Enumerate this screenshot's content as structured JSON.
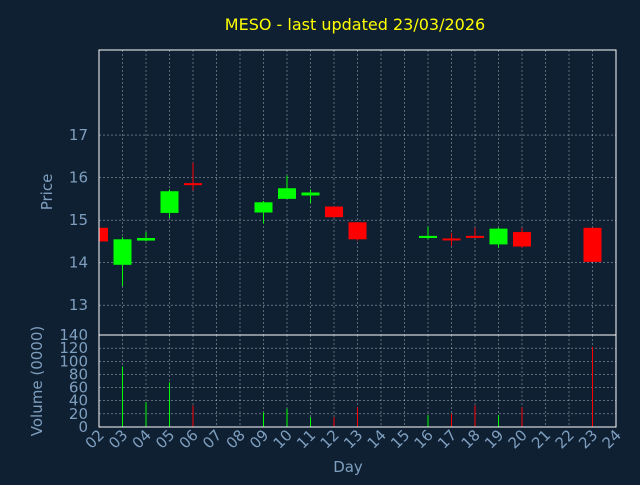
{
  "chart_data": {
    "type": "candlestick",
    "title": "MESO - last updated 23/03/2026",
    "xlabel": "Day",
    "categories": [
      "02",
      "03",
      "04",
      "05",
      "06",
      "07",
      "08",
      "09",
      "10",
      "11",
      "12",
      "13",
      "14",
      "15",
      "16",
      "17",
      "18",
      "19",
      "20",
      "21",
      "22",
      "23",
      "24"
    ],
    "price_panel": {
      "ylabel": "Price",
      "ylim": [
        12.3,
        19.0
      ],
      "yticks": [
        13,
        14,
        15,
        16,
        17
      ],
      "candles": [
        {
          "day": "02",
          "open": 14.82,
          "high": 14.82,
          "low": 14.5,
          "close": 14.5
        },
        {
          "day": "03",
          "open": 13.95,
          "high": 14.6,
          "low": 13.45,
          "close": 14.55
        },
        {
          "day": "04",
          "open": 14.52,
          "high": 14.72,
          "low": 14.5,
          "close": 14.58
        },
        {
          "day": "05",
          "open": 15.17,
          "high": 15.72,
          "low": 15.05,
          "close": 15.68
        },
        {
          "day": "06",
          "open": 15.87,
          "high": 16.35,
          "low": 15.7,
          "close": 15.85
        },
        {
          "day": "09",
          "open": 15.18,
          "high": 15.45,
          "low": 14.92,
          "close": 15.42
        },
        {
          "day": "10",
          "open": 15.5,
          "high": 16.05,
          "low": 15.5,
          "close": 15.75
        },
        {
          "day": "11",
          "open": 15.58,
          "high": 15.72,
          "low": 15.4,
          "close": 15.65
        },
        {
          "day": "12",
          "open": 15.32,
          "high": 15.32,
          "low": 15.05,
          "close": 15.07
        },
        {
          "day": "13",
          "open": 14.95,
          "high": 14.95,
          "low": 14.52,
          "close": 14.55
        },
        {
          "day": "16",
          "open": 14.58,
          "high": 14.85,
          "low": 14.55,
          "close": 14.63
        },
        {
          "day": "17",
          "open": 14.57,
          "high": 14.7,
          "low": 14.4,
          "close": 14.55
        },
        {
          "day": "18",
          "open": 14.63,
          "high": 14.82,
          "low": 14.6,
          "close": 14.62
        },
        {
          "day": "19",
          "open": 14.43,
          "high": 14.82,
          "low": 14.35,
          "close": 14.8
        },
        {
          "day": "20",
          "open": 14.72,
          "high": 14.82,
          "low": 14.35,
          "close": 14.38
        },
        {
          "day": "23",
          "open": 14.82,
          "high": 14.82,
          "low": 14.02,
          "close": 14.02
        }
      ]
    },
    "volume_panel": {
      "ylabel": "Volume (0000)",
      "ylim": [
        0,
        140
      ],
      "yticks": [
        0,
        20,
        40,
        60,
        80,
        100,
        120,
        140
      ],
      "bars": [
        {
          "day": "02",
          "value": 0,
          "direction": "down"
        },
        {
          "day": "03",
          "value": 92,
          "direction": "up"
        },
        {
          "day": "04",
          "value": 38,
          "direction": "up"
        },
        {
          "day": "05",
          "value": 68,
          "direction": "up"
        },
        {
          "day": "06",
          "value": 33,
          "direction": "down"
        },
        {
          "day": "09",
          "value": 22,
          "direction": "up"
        },
        {
          "day": "10",
          "value": 28,
          "direction": "up"
        },
        {
          "day": "11",
          "value": 15,
          "direction": "up"
        },
        {
          "day": "12",
          "value": 15,
          "direction": "down"
        },
        {
          "day": "13",
          "value": 30,
          "direction": "down"
        },
        {
          "day": "16",
          "value": 18,
          "direction": "up"
        },
        {
          "day": "17",
          "value": 20,
          "direction": "down"
        },
        {
          "day": "18",
          "value": 33,
          "direction": "down"
        },
        {
          "day": "19",
          "value": 18,
          "direction": "up"
        },
        {
          "day": "20",
          "value": 30,
          "direction": "down"
        },
        {
          "day": "23",
          "value": 122,
          "direction": "down"
        }
      ]
    },
    "grid": true,
    "colors": {
      "background": "#0f2033",
      "up": "#00ff00",
      "down": "#ff0000",
      "text": "#7f9fbf",
      "title": "#ffff00",
      "grid": "#ffffff"
    }
  }
}
